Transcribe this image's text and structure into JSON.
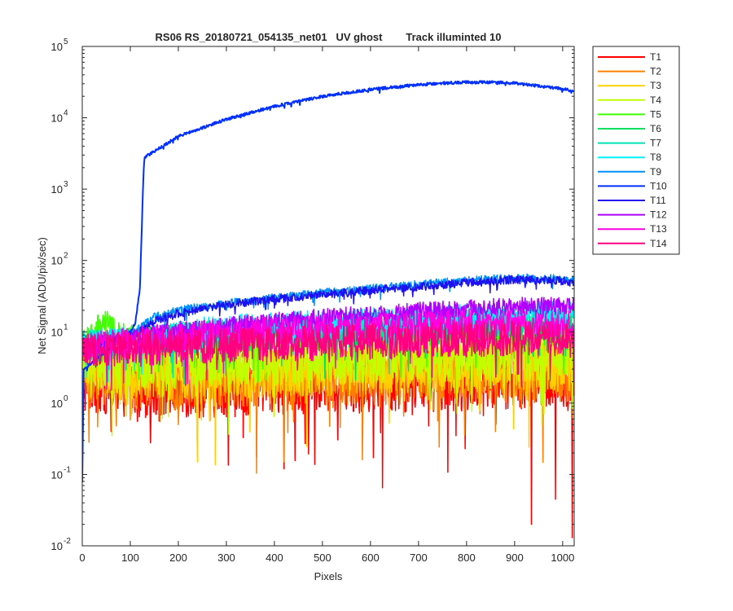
{
  "chart_data": {
    "type": "line",
    "title": "RS06 RS_20180721_054135_net01   UV ghost        Track illuminted 10",
    "xlabel": "Pixels",
    "ylabel": "Net Signal (ADU/pix/sec)",
    "xlim": [
      0,
      1024
    ],
    "ylim": [
      0.01,
      100000
    ],
    "yscale": "log",
    "grid": false,
    "legend_position": "outside-right",
    "x_ticks": [
      {
        "value": 0,
        "label": "0"
      },
      {
        "value": 100,
        "label": "100"
      },
      {
        "value": 200,
        "label": "200"
      },
      {
        "value": 300,
        "label": "300"
      },
      {
        "value": 400,
        "label": "400"
      },
      {
        "value": 500,
        "label": "500"
      },
      {
        "value": 600,
        "label": "600"
      },
      {
        "value": 700,
        "label": "700"
      },
      {
        "value": 800,
        "label": "800"
      },
      {
        "value": 900,
        "label": "900"
      },
      {
        "value": 1000,
        "label": "1000"
      }
    ],
    "y_ticks": [
      {
        "value": 0.01,
        "base": "10",
        "exp": "-2"
      },
      {
        "value": 0.1,
        "base": "10",
        "exp": "-1"
      },
      {
        "value": 1,
        "base": "10",
        "exp": "0"
      },
      {
        "value": 10,
        "base": "10",
        "exp": "1"
      },
      {
        "value": 100,
        "base": "10",
        "exp": "2"
      },
      {
        "value": 1000,
        "base": "10",
        "exp": "3"
      },
      {
        "value": 10000,
        "base": "10",
        "exp": "4"
      },
      {
        "value": 100000,
        "base": "10",
        "exp": "5"
      }
    ],
    "series": [
      {
        "name": "T1",
        "color": "#ff0000",
        "x": [
          0,
          100,
          200,
          300,
          400,
          500,
          600,
          700,
          800,
          900,
          1000,
          1023
        ],
        "y": [
          2.0,
          1.8,
          1.7,
          1.8,
          1.9,
          2.0,
          2.0,
          2.1,
          2.2,
          2.3,
          2.2,
          2.0
        ],
        "dips": [
          [
            60,
            0.4
          ],
          [
            420,
            0.12
          ],
          [
            625,
            0.065
          ],
          [
            935,
            0.02
          ],
          [
            985,
            0.045
          ],
          [
            1020,
            0.013
          ]
        ]
      },
      {
        "name": "T2",
        "color": "#ff8000",
        "x": [
          0,
          100,
          200,
          300,
          400,
          500,
          600,
          700,
          800,
          900,
          1000,
          1023
        ],
        "y": [
          2.5,
          2.2,
          2.1,
          2.2,
          2.3,
          2.4,
          2.5,
          2.5,
          2.6,
          2.7,
          2.6,
          2.5
        ],
        "dips": [
          [
            200,
            0.5
          ],
          [
            420,
            0.15
          ],
          [
            860,
            0.4
          ]
        ]
      },
      {
        "name": "T3",
        "color": "#ffd000",
        "x": [
          0,
          100,
          200,
          300,
          400,
          500,
          600,
          700,
          800,
          900,
          1000,
          1023
        ],
        "y": [
          3.0,
          2.8,
          2.8,
          2.9,
          3.0,
          3.2,
          3.3,
          3.4,
          3.5,
          3.6,
          3.5,
          3.3
        ],
        "dips": [
          [
            240,
            0.15
          ],
          [
            930,
            0.24
          ]
        ]
      },
      {
        "name": "T4",
        "color": "#c0ff00",
        "x": [
          0,
          100,
          200,
          300,
          400,
          500,
          600,
          700,
          800,
          900,
          1000,
          1023
        ],
        "y": [
          3.5,
          3.6,
          3.7,
          3.9,
          4.0,
          4.2,
          4.3,
          4.4,
          4.5,
          4.6,
          4.5,
          4.4
        ],
        "dips": []
      },
      {
        "name": "T5",
        "color": "#40ff00",
        "x": [
          0,
          20,
          40,
          50,
          60,
          80,
          100,
          200,
          300,
          400,
          500,
          600,
          700,
          800,
          900,
          1000,
          1023
        ],
        "y": [
          6.0,
          8.0,
          12.0,
          14.0,
          10.0,
          8.0,
          7.5,
          8.0,
          8.5,
          9.0,
          9.5,
          10.0,
          10.0,
          10.5,
          10.5,
          10.0,
          10.0
        ],
        "dips": []
      },
      {
        "name": "T6",
        "color": "#00e060",
        "x": [
          0,
          100,
          200,
          300,
          400,
          500,
          600,
          700,
          800,
          900,
          1000,
          1023
        ],
        "y": [
          6.0,
          7.0,
          8.0,
          8.5,
          9.0,
          9.5,
          10.0,
          11.0,
          11.5,
          12.0,
          12.0,
          11.5
        ],
        "dips": []
      },
      {
        "name": "T7",
        "color": "#00e0b0",
        "x": [
          0,
          100,
          200,
          300,
          400,
          500,
          600,
          700,
          800,
          900,
          1000,
          1023
        ],
        "y": [
          6.5,
          7.5,
          8.5,
          9.5,
          10.5,
          11.0,
          12.0,
          13.0,
          13.5,
          14.0,
          14.0,
          13.5
        ],
        "dips": []
      },
      {
        "name": "T8",
        "color": "#00f0ff",
        "x": [
          0,
          100,
          200,
          300,
          400,
          500,
          600,
          700,
          800,
          900,
          1000,
          1023
        ],
        "y": [
          7.0,
          8.0,
          10.0,
          11.5,
          12.5,
          13.5,
          14.5,
          15.5,
          16.5,
          17.5,
          18.0,
          18.0
        ],
        "dips": []
      },
      {
        "name": "T9",
        "color": "#0090ff",
        "x": [
          0,
          100,
          150,
          200,
          300,
          400,
          500,
          600,
          700,
          800,
          900,
          1000,
          1023
        ],
        "y": [
          6.0,
          9.0,
          16.0,
          20.0,
          25.0,
          30.0,
          35.0,
          40.0,
          46.0,
          52.0,
          57.0,
          55.0,
          52.0
        ],
        "dips": []
      },
      {
        "name": "T10",
        "color": "#0030ff",
        "x": [
          0,
          3,
          100,
          110,
          120,
          125,
          128,
          130,
          200,
          300,
          400,
          500,
          600,
          700,
          750,
          800,
          850,
          900,
          950,
          1000,
          1023
        ],
        "y": [
          0.08,
          3.0,
          10.0,
          13.0,
          40.0,
          500.0,
          2000.0,
          2800.0,
          5500.0,
          9500.0,
          14500.0,
          20000.0,
          25000.0,
          29000.0,
          30500.0,
          31500.0,
          31500.0,
          30500.0,
          28000.0,
          25500.0,
          23500.0
        ],
        "dips": []
      },
      {
        "name": "T11",
        "color": "#2010f0",
        "x": [
          0,
          100,
          150,
          200,
          300,
          400,
          500,
          600,
          700,
          800,
          900,
          1000,
          1023
        ],
        "y": [
          5.5,
          8.5,
          14.0,
          18.0,
          24.0,
          29.0,
          33.0,
          38.0,
          43.0,
          49.0,
          54.0,
          52.0,
          48.0
        ],
        "dips": []
      },
      {
        "name": "T12",
        "color": "#b000ff",
        "x": [
          0,
          100,
          200,
          300,
          400,
          500,
          600,
          700,
          800,
          900,
          1000,
          1023
        ],
        "y": [
          6.0,
          8.0,
          10.5,
          12.0,
          14.0,
          16.0,
          17.5,
          19.5,
          21.0,
          23.0,
          23.0,
          22.0
        ],
        "dips": []
      },
      {
        "name": "T13",
        "color": "#ff00e0",
        "x": [
          0,
          100,
          200,
          300,
          400,
          500,
          600,
          700,
          800,
          900,
          1000,
          1023
        ],
        "y": [
          6.0,
          7.5,
          8.5,
          9.5,
          10.5,
          11.0,
          11.5,
          12.5,
          13.0,
          13.0,
          13.0,
          12.5
        ],
        "dips": []
      },
      {
        "name": "T14",
        "color": "#ff0080",
        "x": [
          0,
          100,
          200,
          300,
          400,
          500,
          600,
          700,
          800,
          900,
          1000,
          1023
        ],
        "y": [
          5.5,
          6.0,
          6.2,
          6.5,
          6.8,
          7.0,
          7.2,
          7.5,
          7.8,
          8.0,
          7.8,
          7.5
        ],
        "dips": []
      }
    ]
  }
}
